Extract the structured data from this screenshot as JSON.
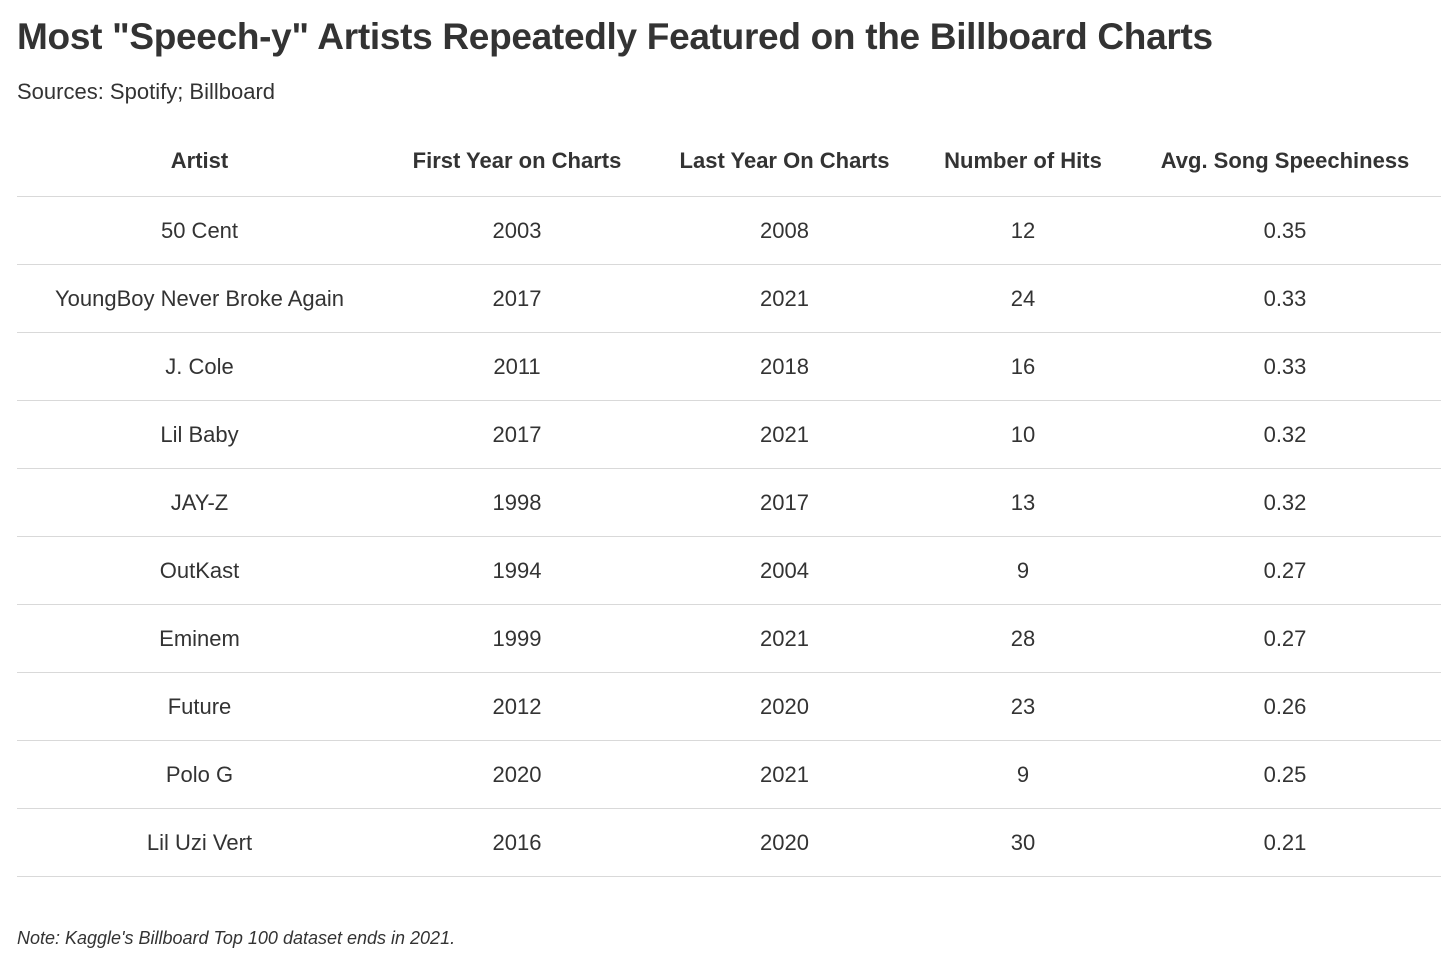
{
  "title": "Most \"Speech-y\" Artists Repeatedly Featured on the Billboard Charts",
  "subtitle": "Sources: Spotify; Billboard",
  "note": "Note: Kaggle's Billboard Top 100 dataset ends in 2021.",
  "chart_data": {
    "type": "table",
    "title": "Most \"Speech-y\" Artists Repeatedly Featured on the Billboard Charts",
    "columns": [
      "Artist",
      "First Year on Charts",
      "Last Year On Charts",
      "Number of Hits",
      "Avg. Song Speechiness"
    ],
    "rows": [
      [
        "50 Cent",
        "2003",
        "2008",
        "12",
        "0.35"
      ],
      [
        "YoungBoy Never Broke Again",
        "2017",
        "2021",
        "24",
        "0.33"
      ],
      [
        "J. Cole",
        "2011",
        "2018",
        "16",
        "0.33"
      ],
      [
        "Lil Baby",
        "2017",
        "2021",
        "10",
        "0.32"
      ],
      [
        "JAY-Z",
        "1998",
        "2017",
        "13",
        "0.32"
      ],
      [
        "OutKast",
        "1994",
        "2004",
        "9",
        "0.27"
      ],
      [
        "Eminem",
        "1999",
        "2021",
        "28",
        "0.27"
      ],
      [
        "Future",
        "2012",
        "2020",
        "23",
        "0.26"
      ],
      [
        "Polo G",
        "2020",
        "2021",
        "9",
        "0.25"
      ],
      [
        "Lil Uzi Vert",
        "2016",
        "2020",
        "30",
        "0.21"
      ]
    ]
  }
}
